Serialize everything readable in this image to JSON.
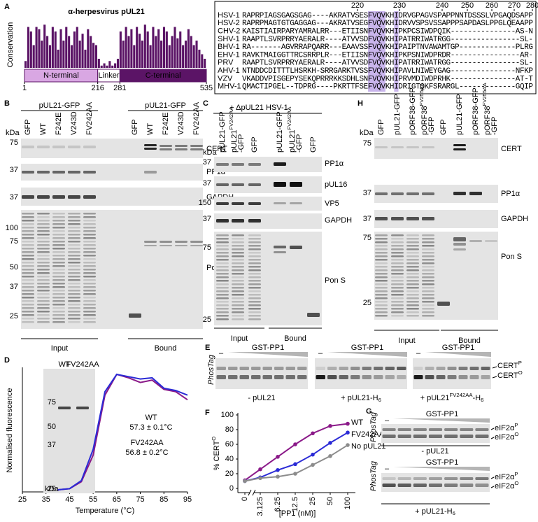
{
  "panel_a": {
    "label": "A",
    "title": "α-herpesvirus pUL21",
    "y_label": "Conservation",
    "ylim": [
      0,
      1
    ],
    "conservation": [
      0.15,
      0.9,
      0.8,
      0.5,
      0.9,
      0.85,
      0.6,
      0.95,
      0.7,
      0.5,
      0.9,
      0.8,
      0.4,
      0.85,
      0.6,
      0.9,
      0.7,
      0.5,
      0.8,
      0.9,
      0.6,
      0.75,
      0.4,
      0.85,
      0.7,
      0.55,
      0.5,
      0.2,
      0.05,
      0.1,
      0.05,
      0.15,
      0.05,
      0.1,
      0.2,
      0.8,
      0.6,
      0.9,
      0.7,
      0.85,
      0.5,
      0.9,
      0.75,
      0.6,
      0.95,
      0.8,
      0.5,
      0.9,
      0.7,
      0.85,
      0.6,
      0.9,
      0.8,
      0.5,
      0.7,
      0.9,
      0.65,
      0.8,
      0.5,
      0.6,
      0.85,
      0.7,
      0.5,
      0.6,
      0.4,
      0.3,
      0.2
    ],
    "domains": [
      "N-terminal",
      "Linker",
      "C-terminal"
    ],
    "residue_ticks": [
      1,
      216,
      281,
      535
    ]
  },
  "alignment": {
    "positions": [
      220,
      230,
      240,
      250,
      260,
      270,
      280
    ],
    "rows": [
      {
        "name": "HSV-1",
        "sequence": "RAPRPIAGSGAGSGAG----AKRATVSESFVQVKHIDRVGPAGVSPAPPNNTDSSSLVPGAQDSAPP"
      },
      {
        "name": "HSV-2",
        "sequence": "RAPRPMAGTGTGAGGAG---AKRATVSEGFVQVKHIDRVVSPSVSSAPPPSAPDASLPPGLQEAAPP"
      },
      {
        "name": "CHV-2",
        "sequence": "KAISTIAIRPARYAMRALRR---ETIISNFVQVKHIPKPCSIWDPQIK---------------AS-N"
      },
      {
        "name": "SHV-1",
        "sequence": "RAAPTLSVRPRRYAERALR----ATVVSDFVQVKHIPATRRIWATRGG----------------SL-"
      },
      {
        "name": "BHV-1",
        "sequence": "RA-------AGVRRAPQARR---EAAVSSFVQVKHIPAIPTNVAWAMTGP-------------PLRG"
      },
      {
        "name": "EHV-1",
        "sequence": "RAVKTMAIGGTTRCSRRPLR---ETIISNFVQVKHIPKPSNIWDPRDR----------------AR-"
      },
      {
        "name": "PRV",
        "sequence": "RAAPTLSVRPRRYAERALR----ATVVSDFVQVKHIPATRRIWATRGG----------------SL-"
      },
      {
        "name": "AHV-1",
        "sequence": "NTNDDCDITTTLHSRKH-SRRGARKTVSSFVQVKHIPAVLNIWEYGAG---------------NFKP"
      },
      {
        "name": "VZV",
        "sequence": "VKADDVPISGEPYSEKQPRRRKKSDHLSNFVQVKHIPRVMDIWDPRHK---------------AT-T"
      },
      {
        "name": "MHV-1",
        "sequence": "QMACTIPGEL--TDPRG----PKRTTFSEFVQVKHIDRIGTQKFSRARGL-------------GQIP"
      }
    ]
  },
  "panel_b": {
    "label": "B",
    "groups": [
      "pUL21-GFP",
      "pUL21-GFP"
    ],
    "lanes": [
      "GFP",
      "WT",
      "F242E",
      "V243D",
      "FV242AA",
      "GFP",
      "WT",
      "F242E",
      "V243D",
      "FV242AA"
    ],
    "kda": "kDa",
    "blots": [
      {
        "name": "CERT",
        "markers": [
          75
        ]
      },
      {
        "name": "PP1α",
        "markers": [
          37
        ]
      },
      {
        "name": "GAPDH",
        "markers": [
          37
        ]
      },
      {
        "name": "Pon S",
        "markers": [
          100,
          75,
          50,
          37,
          25
        ]
      }
    ],
    "sections": [
      "Input",
      "Bound"
    ]
  },
  "panel_c": {
    "label": "C",
    "header": "+ ΔpUL21 HSV-1",
    "lanes": [
      "pUL21-GFP",
      {
        "lines": [
          [
            "pUL21",
            {
              "sup": "FV242AA"
            }
          ],
          "-GFP"
        ]
      },
      "GFP",
      "pUL21-GFP",
      {
        "lines": [
          [
            "pUL21",
            {
              "sup": "FV242AA"
            }
          ],
          "-GFP"
        ]
      },
      "GFP"
    ],
    "kda": "kDa",
    "blots": [
      {
        "name": "PP1α",
        "markers": [
          37
        ]
      },
      {
        "name": "pUL16",
        "markers": [
          37
        ]
      },
      {
        "name": "VP5",
        "markers": [
          150
        ]
      },
      {
        "name": "GAPDH",
        "markers": [
          37
        ]
      },
      {
        "name": "Pon S",
        "markers": [
          75,
          25
        ]
      }
    ],
    "sections": [
      "Input",
      "Bound"
    ]
  },
  "panel_h": {
    "label": "H",
    "lanes": [
      "GFP",
      "pUL21-GFP",
      "pORF38-GFP",
      {
        "lines": [
          [
            "pORF38",
            {
              "sup": "FV255AA"
            }
          ],
          "-GFP"
        ]
      },
      "GFP",
      "pUL21-GFP",
      "pORF38-GFP",
      {
        "lines": [
          [
            "pORF38",
            {
              "sup": "FV255AA"
            }
          ],
          "-GFP"
        ]
      }
    ],
    "kda": "kDa",
    "blots": [
      {
        "name": "CERT",
        "markers": [
          75
        ]
      },
      {
        "name": "PP1α",
        "markers": [
          37
        ]
      },
      {
        "name": "GAPDH",
        "markers": [
          37
        ]
      },
      {
        "name": "Pon S",
        "markers": [
          75,
          25
        ]
      }
    ],
    "sections": [
      "Input",
      "Bound"
    ]
  },
  "panel_d": {
    "label": "D",
    "type": "line",
    "y_label": "Normalised fluorescence",
    "x_label": "Temperature (°C)",
    "xlim": [
      25,
      95
    ],
    "xticks": [
      25,
      35,
      45,
      55,
      65,
      75,
      85,
      95
    ],
    "ylim": [
      0,
      1
    ],
    "x": [
      25,
      30,
      35,
      40,
      45,
      50,
      55,
      60,
      65,
      70,
      75,
      80,
      85,
      90,
      95
    ],
    "series": [
      {
        "name": "WT",
        "color": "#8b1a89",
        "tm": "57.3 ± 0.1°C",
        "values": [
          null,
          null,
          null,
          0.0,
          0.01,
          0.07,
          0.3,
          0.82,
          1.0,
          0.97,
          0.93,
          0.95,
          0.87,
          0.85,
          0.78
        ]
      },
      {
        "name": "FV242AA",
        "color": "#2b2bd6",
        "tm": "56.8 ± 0.2°C",
        "values": [
          null,
          null,
          null,
          0.0,
          0.01,
          0.08,
          0.35,
          0.85,
          1.0,
          0.98,
          0.96,
          0.97,
          0.88,
          0.86,
          0.82
        ]
      }
    ],
    "inset": {
      "kda": "kDa",
      "markers": [
        75,
        50,
        37,
        25
      ]
    }
  },
  "panel_e": {
    "label": "E",
    "enzyme": "GST-PP1",
    "minus": "–",
    "phostag": "PhosTag",
    "conditions": [
      "- pUL21",
      [
        "+ pUL21-H",
        {
          "sub": "6"
        }
      ],
      [
        "+ pUL21",
        {
          "sup": "FV242AA"
        },
        "-H",
        {
          "sub": "6"
        }
      ]
    ],
    "bands": [
      [
        "CERT",
        {
          "sup": "P"
        }
      ],
      [
        "CERT",
        {
          "sup": "O"
        }
      ]
    ]
  },
  "panel_f": {
    "label": "F",
    "type": "line",
    "y_label": [
      "% CERT",
      {
        "sup": "O"
      }
    ],
    "x_label": "[PP1 (nM)]",
    "categories": [
      0,
      3.125,
      6.25,
      12.5,
      25,
      50,
      100
    ],
    "ylim": [
      0,
      100
    ],
    "yticks": [
      0,
      20,
      40,
      60,
      80,
      100
    ],
    "series": [
      {
        "name": "WT",
        "color": "#8b1a89",
        "values": [
          11,
          26,
          43,
          60,
          75,
          85,
          88
        ]
      },
      {
        "name": "FV242AA",
        "color": "#2b2bd6",
        "values": [
          10,
          15,
          25,
          33,
          46,
          62,
          76
        ]
      },
      {
        "name": "No pUL21",
        "color": "#8c8c8c",
        "values": [
          10,
          14,
          16,
          20,
          32,
          44,
          59
        ]
      }
    ]
  },
  "panel_g": {
    "label": "G",
    "enzyme": "GST-PP1",
    "minus": "–",
    "phostag": "PhosTag",
    "blots": [
      {
        "condition": "- pUL21",
        "bands": [
          [
            "eIF2α",
            {
              "sup": "P"
            }
          ],
          [
            "eIF2α",
            {
              "sup": "O"
            }
          ]
        ]
      },
      {
        "condition": [
          "+ pUL21-H",
          {
            "sub": "6"
          }
        ],
        "bands": [
          [
            "eIF2α",
            {
              "sup": "P"
            }
          ],
          [
            "eIF2α",
            {
              "sup": "O"
            }
          ]
        ]
      }
    ]
  }
}
